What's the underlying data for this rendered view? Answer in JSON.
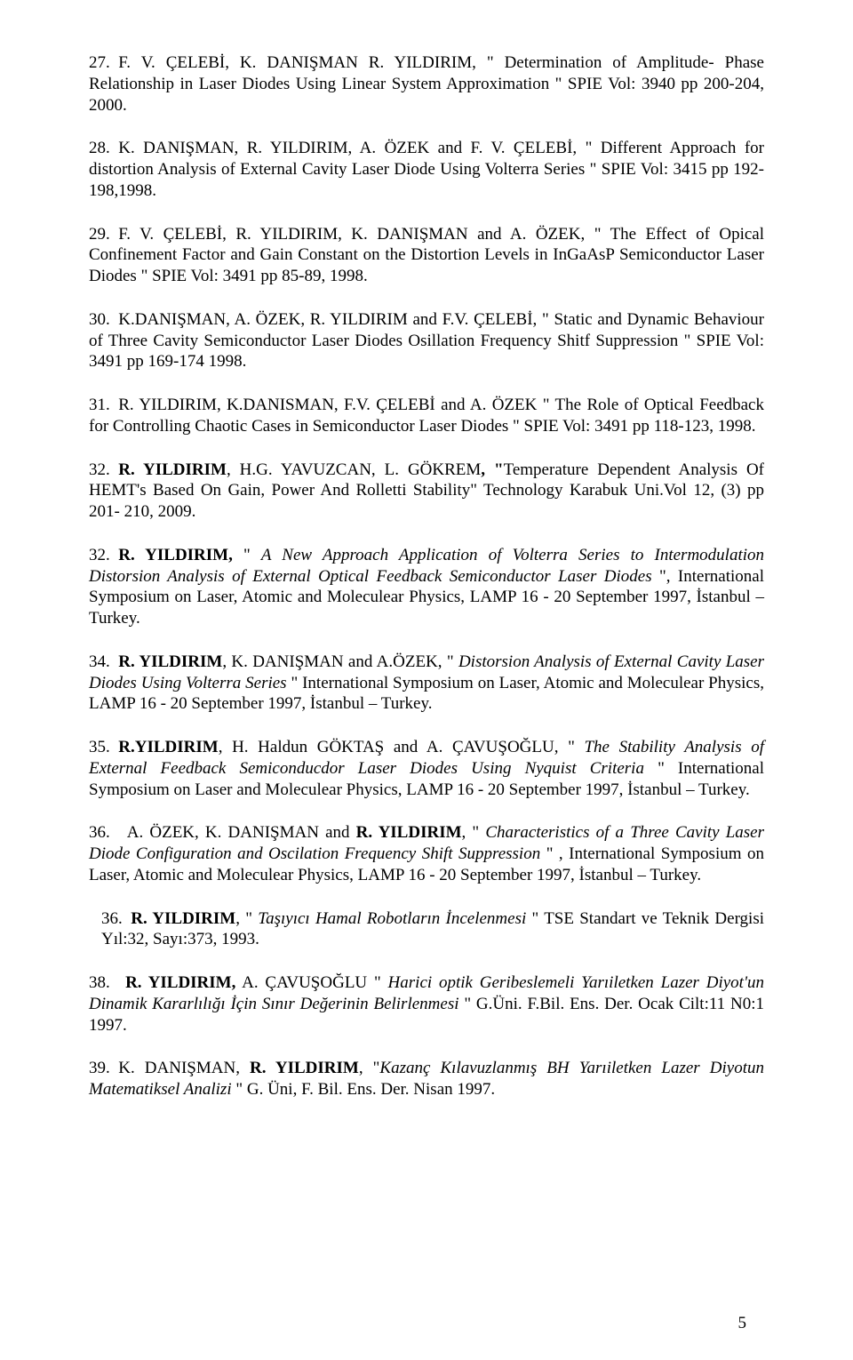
{
  "page_number": "5",
  "refs": [
    {
      "num": "27.",
      "parts": [
        {
          "t": " F. V. ÇELEBİ, K. DANIŞMAN R. YILDIRIM, \" Determination of Amplitude- Phase Relationship in Laser Diodes Using Linear System Approximation \" SPIE Vol: 3940 pp 200-204,  2000."
        }
      ]
    },
    {
      "num": "28.",
      "parts": [
        {
          "t": " K. DANIŞMAN, R. YILDIRIM, A. ÖZEK and F. V. ÇELEBİ, \" Different Approach for distortion Analysis of External Cavity Laser Diode Using Volterra Series \" SPIE Vol: 3415 pp 192-198,1998."
        }
      ]
    },
    {
      "num": "29.",
      "parts": [
        {
          "t": " F. V. ÇELEBİ, R. YILDIRIM, K. DANIŞMAN and A. ÖZEK, \" The Effect of Opical Confinement Factor and Gain Constant on the Distortion Levels in InGaAsP Semiconductor Laser Diodes \"  SPIE Vol: 3491  pp 85-89, 1998."
        }
      ]
    },
    {
      "num": "30.",
      "parts": [
        {
          "t": " K.DANIŞMAN, A. ÖZEK, R. YILDIRIM and F.V. ÇELEBİ, \" Static and Dynamic Behaviour of Three Cavity Semiconductor Laser Diodes Osillation Frequency Shitf Suppression \"  SPIE Vol: 3491  pp 169-174 1998."
        }
      ]
    },
    {
      "num": "31.",
      "parts": [
        {
          "t": " R. YILDIRIM, K.DANISMAN, F.V. ÇELEBİ and A. ÖZEK \" The Role of Optical Feedback for Controlling Chaotic Cases in Semiconductor Laser Diodes \" SPIE Vol: 3491  pp 118-123,  1998."
        }
      ]
    },
    {
      "num": "32.",
      "parts": [
        {
          "t": " ",
          "s": ""
        },
        {
          "t": "R. YILDIRIM",
          "s": "b"
        },
        {
          "t": ", H.G. YAVUZCAN, L. GÖKREM"
        },
        {
          "t": ", \"",
          "s": "b"
        },
        {
          "t": "Temperature Dependent Analysis Of HEMT's Based On Gain, Power And Rolletti Stability\" Technology  Karabuk Uni.Vol 12, (3) pp 201- 210, 2009."
        }
      ]
    },
    {
      "num": "32.",
      "parts": [
        {
          "t": " ",
          "s": ""
        },
        {
          "t": "R. YILDIRIM,",
          "s": "b"
        },
        {
          "t": " \" "
        },
        {
          "t": "A New Approach Application of Volterra Series to Intermodulation Distorsion Analysis of External Optical Feedback Semiconductor Laser Diodes",
          "s": "i"
        },
        {
          "t": " \", International Symposium on Laser, Atomic and Moleculear Physics, LAMP 16 - 20 September 1997, İstanbul – Turkey."
        }
      ]
    },
    {
      "num": "34.",
      "parts": [
        {
          "t": " ",
          "s": ""
        },
        {
          "t": "R. YILDIRIM",
          "s": "b"
        },
        {
          "t": ", K. DANIŞMAN and A.ÖZEK, \"  "
        },
        {
          "t": "Distorsion Analysis of External Cavity Laser Diodes Using Volterra Series",
          "s": "i"
        },
        {
          "t": " \"  International Symposium on Laser, Atomic and Moleculear Physics, LAMP 16 - 20 September 1997, İstanbul – Turkey."
        }
      ]
    },
    {
      "num": "35.",
      "parts": [
        {
          "t": " ",
          "s": ""
        },
        {
          "t": "R.YILDIRIM",
          "s": "b"
        },
        {
          "t": ", H. Haldun GÖKTAŞ and A. ÇAVUŞOĞLU, \" "
        },
        {
          "t": "The Stability Analysis of External Feedback Semiconducdor Laser Diodes Using Nyquist Criteria",
          "s": "i"
        },
        {
          "t": " \" International Symposium on Laser and Moleculear Physics, LAMP 16 - 20 September 1997, İstanbul – Turkey."
        }
      ]
    },
    {
      "num": "36.",
      "parts": [
        {
          "t": "  A. ÖZEK, K. DANIŞMAN and "
        },
        {
          "t": "R. YILDIRIM",
          "s": "b"
        },
        {
          "t": ", \"  "
        },
        {
          "t": "Characteristics of a Three Cavity Laser Diode Configuration  and Oscilation Frequency Shift Suppression",
          "s": "i"
        },
        {
          "t": " \" , International Symposium on Laser, Atomic and Moleculear Physics, LAMP 16 - 20 September 1997, İstanbul – Turkey."
        }
      ]
    },
    {
      "num": " 36.",
      "indent": true,
      "parts": [
        {
          "t": " ",
          "s": ""
        },
        {
          "t": "R. YILDIRIM",
          "s": "b"
        },
        {
          "t": ", \" "
        },
        {
          "t": "Taşıyıcı Hamal Robotların İncelenmesi",
          "s": "i"
        },
        {
          "t": " \" TSE Standart ve Teknik Dergisi Yıl:32, Sayı:373, 1993."
        }
      ]
    },
    {
      "num": "38.",
      "parts": [
        {
          "t": " ",
          "s": ""
        },
        {
          "t": " R. YILDIRIM,",
          "s": "b"
        },
        {
          "t": " A. ÇAVUŞOĞLU \" "
        },
        {
          "t": "Harici optik Geribeslemeli Yarıiletken Lazer Diyot'un Dinamik Kararlılığı İçin Sınır Değerinin Belirlenmesi",
          "s": "i"
        },
        {
          "t": " \" G.Üni. F.Bil. Ens. Der. Ocak Cilt:11  N0:1  1997."
        }
      ]
    },
    {
      "num": "39.",
      "parts": [
        {
          "t": " K. DANIŞMAN, "
        },
        {
          "t": "R. YILDIRIM",
          "s": "b"
        },
        {
          "t": ", \""
        },
        {
          "t": "Kazanç Kılavuzlanmış BH Yarıiletken Lazer Diyotun Matematiksel Analizi",
          "s": "i"
        },
        {
          "t": " \" G. Üni, F. Bil. Ens. Der.  Nisan 1997."
        }
      ]
    }
  ]
}
